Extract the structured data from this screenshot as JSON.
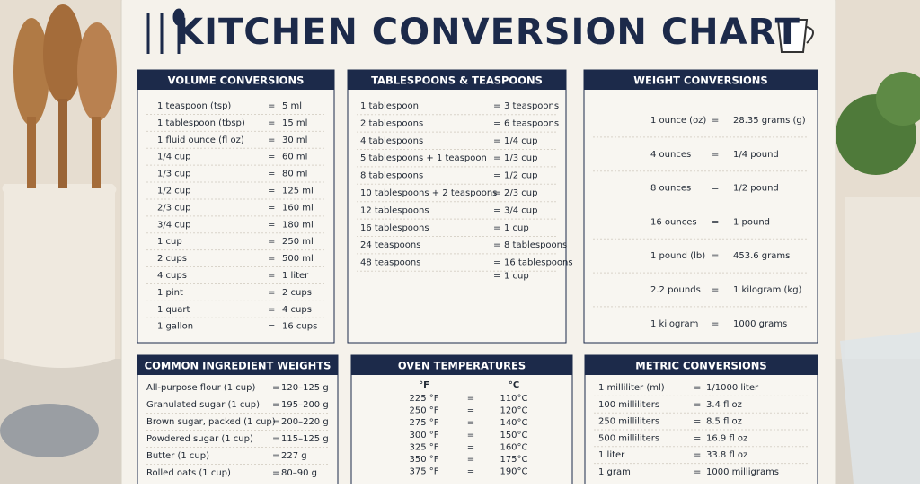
{
  "header": {
    "title": "KITCHEN CONVERSION CHART"
  },
  "separator": "=",
  "sections": [
    {
      "title": "VOLUME CONVERSIONS",
      "rows": [
        [
          "1 teaspoon (tsp)",
          "5 ml"
        ],
        [
          "1 tablespoon (tbsp)",
          "15 ml"
        ],
        [
          "1 fluid ounce (fl oz)",
          "30 ml"
        ],
        [
          "1/4 cup",
          "60 ml"
        ],
        [
          "1/3 cup",
          "80 ml"
        ],
        [
          "1/2 cup",
          "125 ml"
        ],
        [
          "2/3 cup",
          "160 ml"
        ],
        [
          "3/4 cup",
          "180 ml"
        ],
        [
          "1 cup",
          "250 ml"
        ],
        [
          "2 cups",
          "500 ml"
        ],
        [
          "4 cups",
          "1 liter"
        ],
        [
          "1 pint",
          "2 cups"
        ],
        [
          "1 quart",
          "4 cups"
        ],
        [
          "1 gallon",
          "16 cups"
        ]
      ]
    },
    {
      "title": "TABLESPOONS & TEASPOONS",
      "rows": [
        [
          "1 tablespoon",
          "3 teaspoons"
        ],
        [
          "2 tablespoons",
          "6 teaspoons"
        ],
        [
          "4 tablespoons",
          "1/4 cup"
        ],
        [
          "5 tablespoons + 1 teaspoon",
          "1/3 cup"
        ],
        [
          "8 tablespoons",
          "1/2 cup"
        ],
        [
          "10 tablespoons + 2 teaspoons",
          "2/3 cup"
        ],
        [
          "12 tablespoons",
          "3/4 cup"
        ],
        [
          "16 tablespoons",
          "1 cup"
        ],
        [
          "24 teaspoons",
          "8 tablespoons"
        ],
        [
          "48 teaspoons",
          "16 tablespoons"
        ],
        [
          "1 cup"
        ]
      ]
    },
    {
      "title": "WEIGHT CONVERSIONS",
      "rows": [
        [
          "1 ounce (oz)",
          "28.35 grams (g)"
        ],
        [
          "4 ounces",
          "1/4 pound"
        ],
        [
          "8 ounces",
          "1/2 pound"
        ],
        [
          "16 ounces",
          "1 pound"
        ],
        [
          "1 pound (lb)",
          "453.6 grams"
        ],
        [
          "2.2 pounds",
          "1 kilogram (kg)"
        ],
        [
          "1 kilogram",
          "1000 grams"
        ]
      ]
    },
    {
      "title": "COMMON INGREDIENT WEIGHTS",
      "rows": [
        [
          "All-purpose flour (1 cup)",
          "120–125 g"
        ],
        [
          "Granulated sugar (1 cup)",
          "195–200 g"
        ],
        [
          "Brown sugar, packed (1 cup)",
          "200–220 g"
        ],
        [
          "Powdered sugar (1 cup)",
          "115–125 g"
        ],
        [
          "Butter (1 cup)",
          "227 g"
        ],
        [
          "Rolled oats (1 cup)",
          "80–90 g"
        ]
      ]
    },
    {
      "title": "OVEN TEMPERATURES",
      "columns": [
        "°F",
        "°C"
      ],
      "rows": [
        [
          "225 °F",
          "110°C"
        ],
        [
          "250 °F",
          "120°C"
        ],
        [
          "275 °F",
          "140°C"
        ],
        [
          "300 °F",
          "150°C"
        ],
        [
          "325 °F",
          "160°C"
        ],
        [
          "350 °F",
          "175°C"
        ],
        [
          "375 °F",
          "190°C"
        ]
      ]
    },
    {
      "title": "METRIC CONVERSIONS",
      "rows": [
        [
          "1 milliliter (ml)",
          "1/1000 liter"
        ],
        [
          "100 milliliters",
          "3.4 fl oz"
        ],
        [
          "250 milliliters",
          "8.5 fl oz"
        ],
        [
          "500 milliliters",
          "16.9 fl oz"
        ],
        [
          "1 liter",
          "33.8 fl oz"
        ],
        [
          "1 gram",
          "1000 milligrams"
        ]
      ]
    }
  ]
}
